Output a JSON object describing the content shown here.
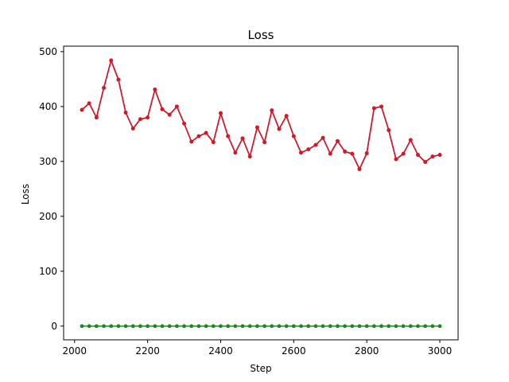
{
  "chart_data": {
    "type": "line",
    "title": "Loss",
    "xlabel": "Step",
    "ylabel": "Loss",
    "xlim": [
      1970,
      3050
    ],
    "ylim": [
      -25,
      510
    ],
    "xticks": [
      2000,
      2200,
      2400,
      2600,
      2800,
      3000
    ],
    "yticks": [
      0,
      100,
      200,
      300,
      400,
      500
    ],
    "grid": false,
    "x": [
      2020,
      2040,
      2060,
      2080,
      2100,
      2120,
      2140,
      2160,
      2180,
      2200,
      2220,
      2240,
      2260,
      2280,
      2300,
      2320,
      2340,
      2360,
      2380,
      2400,
      2420,
      2440,
      2460,
      2480,
      2500,
      2520,
      2540,
      2560,
      2580,
      2600,
      2620,
      2640,
      2660,
      2680,
      2700,
      2720,
      2740,
      2760,
      2780,
      2800,
      2820,
      2840,
      2860,
      2880,
      2900,
      2920,
      2940,
      2960,
      2980,
      3000
    ],
    "series": [
      {
        "color": "#1f3fbf",
        "values": [
          394,
          406,
          380,
          434,
          484,
          449,
          389,
          360,
          377,
          380,
          431,
          395,
          385,
          400,
          369,
          336,
          346,
          352,
          335,
          388,
          346,
          316,
          342,
          309,
          362,
          335,
          393,
          359,
          383,
          346,
          316,
          322,
          330,
          343,
          314,
          337,
          318,
          314,
          286,
          315,
          397,
          400,
          357,
          304,
          314,
          339,
          312,
          299,
          309,
          312
        ]
      },
      {
        "color": "#e0141c",
        "values": [
          394,
          406,
          380,
          434,
          484,
          449,
          389,
          360,
          377,
          380,
          431,
          395,
          385,
          400,
          369,
          336,
          346,
          352,
          335,
          388,
          346,
          316,
          342,
          309,
          362,
          335,
          393,
          359,
          383,
          346,
          316,
          322,
          330,
          343,
          314,
          337,
          318,
          314,
          286,
          315,
          397,
          400,
          357,
          304,
          314,
          339,
          312,
          299,
          309,
          312
        ]
      },
      {
        "color": "#1a8a1a",
        "values": [
          0,
          0,
          0,
          0,
          0,
          0,
          0,
          0,
          0,
          0,
          0,
          0,
          0,
          0,
          0,
          0,
          0,
          0,
          0,
          0,
          0,
          0,
          0,
          0,
          0,
          0,
          0,
          0,
          0,
          0,
          0,
          0,
          0,
          0,
          0,
          0,
          0,
          0,
          0,
          0,
          0,
          0,
          0,
          0,
          0,
          0,
          0,
          0,
          0,
          0
        ]
      }
    ]
  }
}
